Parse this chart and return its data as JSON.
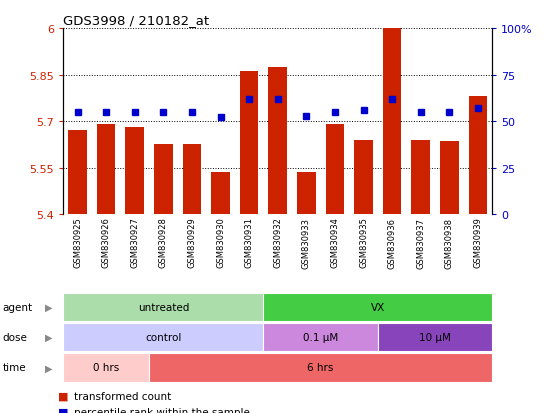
{
  "title": "GDS3998 / 210182_at",
  "samples": [
    "GSM830925",
    "GSM830926",
    "GSM830927",
    "GSM830928",
    "GSM830929",
    "GSM830930",
    "GSM830931",
    "GSM830932",
    "GSM830933",
    "GSM830934",
    "GSM830935",
    "GSM830936",
    "GSM830937",
    "GSM830938",
    "GSM830939"
  ],
  "bar_values": [
    5.67,
    5.69,
    5.68,
    5.625,
    5.625,
    5.535,
    5.86,
    5.875,
    5.535,
    5.69,
    5.64,
    6.0,
    5.64,
    5.635,
    5.78
  ],
  "percentile_values": [
    55,
    55,
    55,
    55,
    55,
    52,
    62,
    62,
    53,
    55,
    56,
    62,
    55,
    55,
    57
  ],
  "ylim_left": [
    5.4,
    6.0
  ],
  "ylim_right": [
    0,
    100
  ],
  "yticks_left": [
    5.4,
    5.55,
    5.7,
    5.85,
    6.0
  ],
  "ytick_labels_left": [
    "5.4",
    "5.55",
    "5.7",
    "5.85",
    "6"
  ],
  "yticks_right": [
    0,
    25,
    50,
    75,
    100
  ],
  "ytick_labels_right": [
    "0",
    "25",
    "50",
    "75",
    "100%"
  ],
  "bar_color": "#cc2200",
  "dot_color": "#0000cc",
  "background_color": "#ffffff",
  "agent_groups": [
    {
      "label": "untreated",
      "start": 0,
      "end": 7,
      "color": "#aaddaa"
    },
    {
      "label": "VX",
      "start": 7,
      "end": 15,
      "color": "#44cc44"
    }
  ],
  "dose_groups": [
    {
      "label": "control",
      "start": 0,
      "end": 7,
      "color": "#ccccff"
    },
    {
      "label": "0.1 μM",
      "start": 7,
      "end": 11,
      "color": "#cc88dd"
    },
    {
      "label": "10 μM",
      "start": 11,
      "end": 15,
      "color": "#8844bb"
    }
  ],
  "time_groups": [
    {
      "label": "0 hrs",
      "start": 0,
      "end": 3,
      "color": "#ffcccc"
    },
    {
      "label": "6 hrs",
      "start": 3,
      "end": 15,
      "color": "#ee6666"
    }
  ],
  "legend_items": [
    {
      "color": "#cc2200",
      "label": "transformed count",
      "marker": "s"
    },
    {
      "color": "#0000cc",
      "label": "percentile rank within the sample",
      "marker": "s"
    }
  ]
}
